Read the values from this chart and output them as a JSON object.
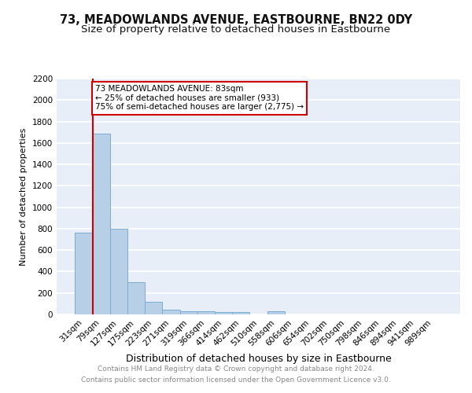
{
  "title": "73, MEADOWLANDS AVENUE, EASTBOURNE, BN22 0DY",
  "subtitle": "Size of property relative to detached houses in Eastbourne",
  "xlabel": "Distribution of detached houses by size in Eastbourne",
  "ylabel": "Number of detached properties",
  "categories": [
    "31sqm",
    "79sqm",
    "127sqm",
    "175sqm",
    "223sqm",
    "271sqm",
    "319sqm",
    "366sqm",
    "414sqm",
    "462sqm",
    "510sqm",
    "558sqm",
    "606sqm",
    "654sqm",
    "702sqm",
    "750sqm",
    "798sqm",
    "846sqm",
    "894sqm",
    "941sqm",
    "989sqm"
  ],
  "values": [
    760,
    1690,
    800,
    300,
    115,
    45,
    32,
    28,
    25,
    20,
    0,
    28,
    0,
    0,
    0,
    0,
    0,
    0,
    0,
    0,
    0
  ],
  "bar_color": "#b8cfe8",
  "bar_edge_color": "#7aadd4",
  "annotation_title": "73 MEADOWLANDS AVENUE: 83sqm",
  "annotation_line1": "← 25% of detached houses are smaller (933)",
  "annotation_line2": "75% of semi-detached houses are larger (2,775) →",
  "annotation_box_facecolor": "#ffffff",
  "annotation_box_edgecolor": "#cc0000",
  "red_line_index": 0.5,
  "ylim": [
    0,
    2200
  ],
  "yticks": [
    0,
    200,
    400,
    600,
    800,
    1000,
    1200,
    1400,
    1600,
    1800,
    2000,
    2200
  ],
  "grid_color": "#ffffff",
  "background_color": "#e8eef8",
  "footer_line1": "Contains HM Land Registry data © Crown copyright and database right 2024.",
  "footer_line2": "Contains public sector information licensed under the Open Government Licence v3.0.",
  "title_fontsize": 10.5,
  "subtitle_fontsize": 9.5,
  "ylabel_fontsize": 8,
  "xlabel_fontsize": 9,
  "tick_fontsize": 7.5,
  "footer_fontsize": 6.5
}
